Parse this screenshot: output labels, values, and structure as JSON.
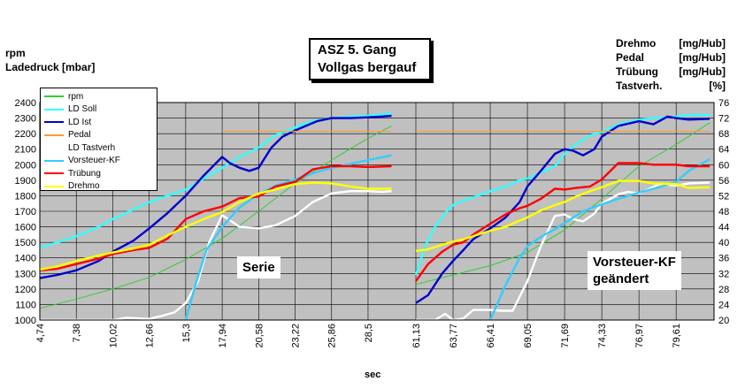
{
  "title": [
    "ASZ 5. Gang",
    "Vollgas bergauf"
  ],
  "left_axis_titles": [
    "rpm",
    "Ladedruck [mbar]"
  ],
  "right_axis_titles": [
    {
      "name": "Drehmo",
      "unit": "[mg/Hub]"
    },
    {
      "name": "Pedal",
      "unit": "[mg/Hub]"
    },
    {
      "name": "Trübung",
      "unit": "[mg/Hub]"
    },
    {
      "name": "Tastverh.",
      "unit": "[%]"
    }
  ],
  "xlabel": "sec",
  "annotations": {
    "left": "Serie",
    "right": [
      "Vorsteuer-KF",
      "geändert"
    ]
  },
  "colors": {
    "plot_bg": "#c0c0c0",
    "rpm": "#33cc33",
    "ld_soll": "#33ffff",
    "ld_ist": "#0000cc",
    "pedal": "#ff9933",
    "tastverh": "#ffffff",
    "vorsteuer": "#33ccff",
    "truebung": "#ff0000",
    "drehmo": "#ffff00"
  },
  "chart_data": {
    "type": "line",
    "title": "ASZ 5. Gang Vollgas bergauf",
    "xlabel": "sec",
    "ylabel_left": "rpm / Ladedruck [mbar]",
    "ylabel_right": "Drehmo / Pedal / Trübung [mg/Hub], Tastverh. [%]",
    "ylim_left": [
      1000,
      2400
    ],
    "ylim_right": [
      20,
      76
    ],
    "yticks_left": [
      1000,
      1100,
      1200,
      1300,
      1400,
      1500,
      1600,
      1700,
      1800,
      1900,
      2000,
      2100,
      2200,
      2300,
      2400
    ],
    "yticks_right": [
      20,
      24,
      28,
      32,
      36,
      40,
      44,
      48,
      52,
      56,
      60,
      64,
      68,
      72,
      76
    ],
    "xticks_left": [
      "4,74",
      "7,38",
      "10,02",
      "12,66",
      "15,3",
      "17,94",
      "20,58",
      "23,22",
      "25,86",
      "28,5"
    ],
    "xticks_right": [
      "61,13",
      "63,77",
      "66,41",
      "69,05",
      "71,69",
      "74,33",
      "76,97",
      "79,61"
    ],
    "grid": true,
    "legend_position": "top-left",
    "panels": [
      {
        "name": "Serie",
        "x_range": [
          4.74,
          31
        ],
        "series": [
          {
            "name": "rpm",
            "axis": "left",
            "color": "#33cc33",
            "x": [
              4.74,
              7.38,
              10.02,
              12.66,
              15.3,
              17.94,
              20.58,
              23.22,
              25.86,
              28.5,
              30.2
            ],
            "y": [
              1075,
              1135,
              1200,
              1275,
              1390,
              1525,
              1700,
              1880,
              2030,
              2170,
              2250
            ]
          },
          {
            "name": "LD Soll",
            "axis": "left",
            "color": "#33ffff",
            "x": [
              4.74,
              6,
              7.38,
              9,
              10.02,
              11.5,
              12.66,
              14,
              15.3,
              16.6,
              17.94,
              19.2,
              20.58,
              21.8,
              23.22,
              24.5,
              25.86,
              27.2,
              28.5,
              30.2
            ],
            "y": [
              1465,
              1500,
              1540,
              1600,
              1650,
              1710,
              1760,
              1800,
              1840,
              1910,
              1980,
              2050,
              2110,
              2190,
              2240,
              2280,
              2300,
              2310,
              2315,
              2330
            ]
          },
          {
            "name": "LD Ist",
            "axis": "left",
            "color": "#0000cc",
            "x": [
              4.74,
              6,
              7.38,
              9,
              10.02,
              11.5,
              12.66,
              14,
              15.3,
              16.6,
              17.94,
              18.5,
              19.2,
              19.9,
              20.58,
              21.5,
              22.3,
              23.22,
              24,
              24.8,
              25.86,
              27.2,
              28.5,
              29.5,
              30.2
            ],
            "y": [
              1270,
              1290,
              1320,
              1380,
              1440,
              1510,
              1590,
              1690,
              1800,
              1930,
              2050,
              2010,
              1980,
              1960,
              1980,
              2110,
              2180,
              2220,
              2250,
              2280,
              2300,
              2300,
              2305,
              2310,
              2315
            ]
          },
          {
            "name": "Pedal",
            "axis": "right",
            "color": "#ff9933",
            "x": [
              17.94,
              30.2
            ],
            "y": [
              68.6,
              68.6
            ]
          },
          {
            "name": "LD Tastverh",
            "axis": "right",
            "color": "#ffffff",
            "x": [
              4.74,
              10.02,
              11,
              12.66,
              13.5,
              14.5,
              15.3,
              16.2,
              17,
              17.94,
              19.2,
              20.58,
              21.8,
              23.22,
              24.5,
              25.86,
              27.2,
              28.5,
              29.5,
              30.2
            ],
            "y": [
              20,
              20,
              20.6,
              20.3,
              21,
              22,
              24.4,
              30,
              40,
              47,
              44,
              43.6,
              44.4,
              46.8,
              50.4,
              52.6,
              53.2,
              53.2,
              53,
              53.2
            ]
          },
          {
            "name": "Vorsteuer-KF",
            "axis": "right",
            "color": "#33ccff",
            "x": [
              15.3,
              16,
              16.8,
              17.94,
              19.2,
              20.58,
              21.8,
              23.22,
              24.5,
              25.86,
              27.2,
              28.5,
              30.2
            ],
            "y": [
              20,
              29,
              38,
              44,
              49,
              52.4,
              54.6,
              56.2,
              57.8,
              59.2,
              60.2,
              61.2,
              62.4
            ]
          },
          {
            "name": "Trübung",
            "axis": "right",
            "color": "#ff0000",
            "x": [
              4.74,
              6,
              7.38,
              9,
              10.02,
              11.5,
              12.66,
              14,
              15.3,
              16.6,
              17.94,
              19.2,
              20.58,
              21.8,
              23.22,
              24.5,
              25.86,
              27.2,
              28.5,
              30.2
            ],
            "y": [
              32.8,
              33.2,
              34.4,
              35.8,
              37,
              38,
              38.6,
              41,
              46,
              48,
              49.2,
              51.4,
              51.8,
              54.4,
              55.6,
              58.8,
              59.6,
              59.6,
              59.4,
              59.6
            ]
          },
          {
            "name": "Drehmo",
            "axis": "right",
            "color": "#ffff00",
            "x": [
              4.74,
              6,
              7.38,
              9,
              10.02,
              11.5,
              12.66,
              14,
              15.3,
              16.6,
              17.94,
              19.2,
              20.58,
              21.8,
              23.22,
              24.5,
              25.86,
              27.2,
              28.5,
              30.2
            ],
            "y": [
              33,
              33.8,
              35.2,
              36.6,
              37.4,
              38.4,
              39.4,
              41.8,
              44,
              46,
              47.8,
              50.4,
              52.6,
              53.6,
              55,
              55.4,
              55.2,
              54.4,
              53.8,
              53.8
            ]
          }
        ]
      },
      {
        "name": "Vorsteuer-KF geändert",
        "x_range": [
          61.13,
          82.3
        ],
        "series": [
          {
            "name": "rpm",
            "axis": "left",
            "color": "#33cc33",
            "x": [
              61.13,
              63.77,
              66.41,
              69.05,
              71.69,
              74.33,
              76.97,
              79.61,
              82
            ],
            "y": [
              1230,
              1290,
              1350,
              1435,
              1580,
              1780,
              1990,
              2130,
              2270
            ]
          },
          {
            "name": "LD Soll",
            "axis": "left",
            "color": "#33ffff",
            "x": [
              61.13,
              61.8,
              62.5,
              63.2,
              63.77,
              64.5,
              65.2,
              66.41,
              67.5,
              68.5,
              69.05,
              70,
              71,
              71.69,
              72.5,
              73.5,
              74.33,
              75.5,
              76.97,
              78,
              79.61,
              80.5,
              82
            ],
            "y": [
              1290,
              1480,
              1600,
              1690,
              1740,
              1770,
              1790,
              1830,
              1860,
              1900,
              1910,
              1950,
              1990,
              2070,
              2130,
              2190,
              2210,
              2260,
              2290,
              2300,
              2310,
              2320,
              2320
            ]
          },
          {
            "name": "LD Ist",
            "axis": "left",
            "color": "#0000cc",
            "x": [
              61.13,
              62,
              63,
              63.77,
              64.5,
              65.2,
              66.41,
              67.5,
              68.5,
              69.05,
              70,
              71,
              71.69,
              72.3,
              73,
              73.8,
              74.33,
              75.5,
              76.97,
              78,
              79,
              79.61,
              80.5,
              82
            ],
            "y": [
              1110,
              1160,
              1300,
              1380,
              1450,
              1520,
              1590,
              1660,
              1760,
              1860,
              1960,
              2070,
              2100,
              2090,
              2060,
              2100,
              2180,
              2250,
              2280,
              2260,
              2310,
              2300,
              2290,
              2295
            ]
          },
          {
            "name": "Pedal",
            "axis": "right",
            "color": "#ff9933",
            "x": [
              61.13,
              82
            ],
            "y": [
              68.6,
              68.6
            ]
          },
          {
            "name": "LD Tastverh",
            "axis": "right",
            "color": "#ffffff",
            "x": [
              61.13,
              62.5,
              63.2,
              63.77,
              64.5,
              65.2,
              66,
              66.41,
              67.2,
              68,
              68.5,
              69.05,
              70,
              71,
              71.69,
              72.3,
              73,
              73.8,
              74.33,
              75.5,
              76.2,
              76.97,
              77.6,
              78.4,
              79.61,
              80.5,
              82
            ],
            "y": [
              20,
              20,
              21.6,
              20,
              20.4,
              22.6,
              22.6,
              22.6,
              22.4,
              22.4,
              26,
              30,
              39,
              46.8,
              47.2,
              46,
              45.4,
              47.4,
              50,
              52.4,
              53,
              52.6,
              53.6,
              55,
              54.6,
              55.2,
              55.4
            ]
          },
          {
            "name": "Vorsteuer-KF",
            "axis": "right",
            "color": "#33ccff",
            "x": [
              66.41,
              67.5,
              68.5,
              69.05,
              70,
              71,
              71.69,
              73,
              74.33,
              75.5,
              76.97,
              78.4,
              79.61,
              80.5,
              82
            ],
            "y": [
              20,
              29,
              36,
              39,
              41.4,
              43.4,
              45,
              48,
              49.8,
              51.2,
              52.8,
              54.2,
              55.6,
              58.4,
              61.4
            ]
          },
          {
            "name": "Trübung",
            "axis": "right",
            "color": "#ff0000",
            "x": [
              61.13,
              62,
              63,
              63.77,
              64.5,
              65.2,
              66.41,
              67.5,
              68.5,
              69.05,
              70,
              71,
              71.69,
              72.5,
              73.5,
              74.33,
              75.5,
              76.97,
              78,
              79.61,
              80.5,
              82
            ],
            "y": [
              30,
              34.4,
              37.6,
              39.4,
              40,
              42,
              44.8,
              47.2,
              48.8,
              49.4,
              51.2,
              53.8,
              53.6,
              54,
              54.4,
              56.2,
              60.4,
              60.4,
              60,
              60,
              59.6,
              59.6
            ]
          },
          {
            "name": "Drehmo",
            "axis": "right",
            "color": "#ffff00",
            "x": [
              61.13,
              62,
              63,
              63.77,
              64.5,
              65.2,
              66.41,
              67.5,
              68.5,
              69.05,
              70,
              71,
              71.69,
              72.5,
              73.5,
              74.33,
              75.5,
              76.97,
              78,
              79.61,
              80.5,
              82
            ],
            "y": [
              37.8,
              38.2,
              39.4,
              40.2,
              40.8,
              41.6,
              43,
              44,
              45.6,
              46.4,
              48.2,
              49.6,
              50.4,
              51.8,
              53.2,
              54.2,
              55.8,
              55.8,
              55.2,
              55,
              54,
              54.2
            ]
          }
        ]
      }
    ]
  }
}
